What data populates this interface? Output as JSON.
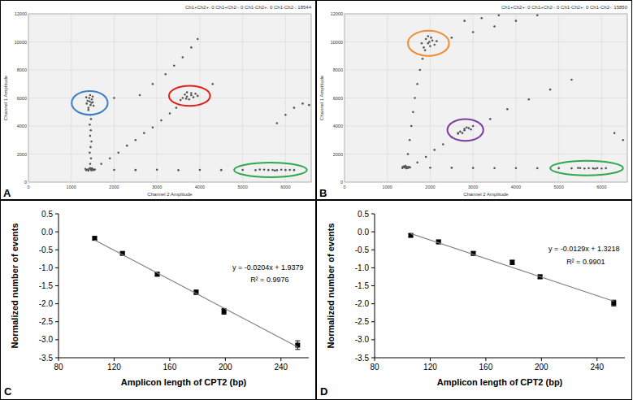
{
  "chart_data": [
    {
      "type": "scatter",
      "panel_label": "A",
      "title": "Ch1+Ch2+: 0  Ch1+Ch2-: 0  Ch1-Ch2+: 0  Ch1-Ch2-: 18544",
      "xlabel": "Channel 2 Amplitude",
      "ylabel": "Channel 1 Amplitude",
      "xlim": [
        0,
        6600
      ],
      "ylim": [
        0,
        12000
      ],
      "xticks": [
        0,
        1000,
        2000,
        3000,
        4000,
        5000,
        6000
      ],
      "yticks": [
        0,
        2000,
        4000,
        6000,
        8000,
        10000,
        12000
      ],
      "grid": true,
      "series": [
        {
          "color": "#555555",
          "marker": "circle",
          "x": [
            1380,
            1420,
            1460,
            1500,
            1350,
            1440,
            1520,
            1400,
            1480,
            1550,
            1330,
            1470,
            1440,
            1460,
            1430,
            1450,
            1470,
            1440,
            1455,
            1430,
            1460,
            1445,
            1400,
            1450,
            1500,
            1380,
            1420,
            1480,
            1360,
            1520,
            1440,
            1400,
            1470,
            1350,
            1500,
            1430,
            1700,
            1900,
            2100,
            2300,
            2500,
            2700,
            2900,
            3100,
            3300,
            3450,
            3600,
            3700,
            3800,
            3750,
            3900,
            3650,
            3850,
            3700,
            3950,
            3550,
            3800,
            3680,
            2600,
            2900,
            3200,
            3400,
            3600,
            3800,
            3950,
            2000,
            4300,
            2000,
            2500,
            3000,
            3500,
            4000,
            4500,
            5000,
            5300,
            5500,
            5600,
            5700,
            5800,
            5900,
            6000,
            6100,
            5400,
            5750,
            6200,
            6000,
            6200,
            6400,
            6550,
            5800
          ],
          "values": [
            900,
            950,
            880,
            920,
            850,
            1000,
            860,
            820,
            980,
            900,
            940,
            840,
            1300,
            1700,
            2100,
            2500,
            2900,
            3300,
            3700,
            4100,
            4500,
            4800,
            5300,
            5500,
            5700,
            5800,
            6000,
            5900,
            5600,
            5450,
            6200,
            5150,
            5650,
            6050,
            6100,
            5750,
            1300,
            1700,
            2100,
            2600,
            3000,
            3500,
            3900,
            4400,
            4900,
            5300,
            6000,
            6100,
            6200,
            5900,
            6300,
            6250,
            6050,
            6400,
            6150,
            5850,
            6350,
            5950,
            6200,
            7000,
            7700,
            8300,
            8900,
            9600,
            10200,
            6000,
            7000,
            870,
            860,
            880,
            850,
            870,
            860,
            870,
            850,
            880,
            860,
            870,
            850,
            880,
            860,
            870,
            900,
            830,
            860,
            4800,
            5300,
            5600,
            5500,
            4200
          ]
        }
      ],
      "clusters": [
        {
          "x": 1430,
          "y": 5650,
          "rx": 420,
          "ry": 850,
          "color": "#3d7fc6"
        },
        {
          "x": 3760,
          "y": 6150,
          "rx": 480,
          "ry": 720,
          "color": "#e0201b"
        },
        {
          "x": 5650,
          "y": 870,
          "rx": 850,
          "ry": 520,
          "color": "#2fa84f"
        }
      ]
    },
    {
      "type": "scatter",
      "panel_label": "B",
      "title": "Ch1+Ch2+: 0  Ch1+Ch2-: 0  Ch1-Ch2+: 0  Ch1-Ch2-: 15850",
      "xlabel": "Channel 2 Amplitude",
      "ylabel": "Channel 1 Amplitude",
      "xlim": [
        0,
        6600
      ],
      "ylim": [
        0,
        12000
      ],
      "xticks": [
        0,
        1000,
        2000,
        3000,
        4000,
        5000,
        6000
      ],
      "yticks": [
        0,
        2000,
        4000,
        6000,
        8000,
        10000,
        12000
      ],
      "grid": true,
      "series": [
        {
          "color": "#555555",
          "marker": "circle",
          "x": [
            1400,
            1450,
            1350,
            1500,
            1420,
            1480,
            1380,
            1530,
            1440,
            1360,
            1480,
            1520,
            1560,
            1600,
            1640,
            1700,
            1760,
            1820,
            1850,
            1950,
            2050,
            1900,
            2000,
            1800,
            2100,
            1950,
            1880,
            2020,
            1980,
            2150,
            2500,
            3000,
            3500,
            4000,
            4500,
            2800,
            3200,
            3600,
            1700,
            1900,
            2100,
            2300,
            2500,
            2650,
            2700,
            2800,
            2900,
            2750,
            2850,
            2950,
            2650,
            2800,
            3000,
            3400,
            3800,
            4300,
            4800,
            5300,
            2000,
            2500,
            3000,
            3500,
            4000,
            4500,
            5000,
            5300,
            5500,
            5600,
            5700,
            5800,
            5900,
            6000,
            6100,
            5450,
            5850,
            6300,
            6500
          ],
          "values": [
            1050,
            1100,
            1000,
            1080,
            1150,
            1000,
            1120,
            1050,
            980,
            1080,
            2000,
            3000,
            4000,
            5000,
            6000,
            7000,
            8000,
            8800,
            9600,
            9900,
            10100,
            10200,
            9700,
            9900,
            9800,
            10400,
            9400,
            10300,
            10000,
            10050,
            10300,
            10700,
            11100,
            11500,
            11900,
            11500,
            11700,
            11900,
            1400,
            1800,
            2300,
            2700,
            3200,
            3500,
            3600,
            3700,
            3850,
            3500,
            3900,
            3750,
            3450,
            3800,
            4000,
            4500,
            5200,
            5900,
            6600,
            7300,
            1030,
            1020,
            1010,
            1000,
            1000,
            990,
            990,
            980,
            1000,
            970,
            990,
            980,
            1000,
            970,
            990,
            1010,
            960,
            3500,
            3000
          ]
        }
      ],
      "clusters": [
        {
          "x": 1960,
          "y": 9900,
          "rx": 480,
          "ry": 900,
          "color": "#f28a2e"
        },
        {
          "x": 2820,
          "y": 3720,
          "rx": 420,
          "ry": 780,
          "color": "#7a3ea1"
        },
        {
          "x": 5650,
          "y": 1000,
          "rx": 850,
          "ry": 520,
          "color": "#2fa84f"
        }
      ]
    },
    {
      "type": "line",
      "panel_label": "C",
      "xlabel": "Amplicon length of CPT2 (bp)",
      "ylabel": "Normalized number of events",
      "xlim": [
        80,
        260
      ],
      "ylim": [
        -3.5,
        0.5
      ],
      "xticks": [
        80,
        120,
        160,
        200,
        240
      ],
      "yticks": [
        0.5,
        {
          "value": 0,
          "label": "0.0"
        },
        -0.5,
        {
          "value": -1,
          "label": "-1.0"
        },
        -1.5,
        {
          "value": -2,
          "label": "-2.0"
        },
        -2.5,
        {
          "value": -3,
          "label": "-3.0"
        },
        -3.5
      ],
      "grid": false,
      "series": [
        {
          "type": "scatter",
          "marker": "square",
          "color": "#000000",
          "x": [
            106,
            126,
            151,
            179,
            199,
            252
          ],
          "values": [
            -0.18,
            -0.6,
            -1.18,
            -1.68,
            -2.21,
            -3.15
          ],
          "errors": [
            0.04,
            0.04,
            0.05,
            0.06,
            0.08,
            0.12
          ]
        },
        {
          "type": "line",
          "line_style": "solid",
          "color": "#7f7f7f",
          "x": [
            106,
            252
          ],
          "values": [
            -0.23,
            -3.2
          ]
        }
      ],
      "annotations": [
        {
          "text": "y = -0.0204x + 1.9379",
          "x": 205,
          "y": -1.05
        },
        {
          "text": "R² = 0.9976",
          "x": 218,
          "y": -1.4
        }
      ]
    },
    {
      "type": "line",
      "panel_label": "D",
      "xlabel": "Amplicon length of CPT2 (bp)",
      "ylabel": "Normalized number of events",
      "xlim": [
        80,
        260
      ],
      "ylim": [
        -3.5,
        0.5
      ],
      "xticks": [
        80,
        120,
        160,
        200,
        240
      ],
      "yticks": [
        0.5,
        {
          "value": 0,
          "label": "0.0"
        },
        -0.5,
        {
          "value": -1,
          "label": "-1.0"
        },
        -1.5,
        {
          "value": -2,
          "label": "-2.0"
        },
        -2.5,
        {
          "value": -3,
          "label": "-3.0"
        },
        -3.5
      ],
      "grid": false,
      "series": [
        {
          "type": "scatter",
          "marker": "square",
          "color": "#000000",
          "x": [
            106,
            126,
            151,
            179,
            199,
            252
          ],
          "values": [
            -0.1,
            -0.28,
            -0.6,
            -0.85,
            -1.25,
            -1.98
          ],
          "errors": [
            0.04,
            0.05,
            0.05,
            0.06,
            0.05,
            0.08
          ]
        },
        {
          "type": "line",
          "line_style": "solid",
          "color": "#7f7f7f",
          "x": [
            106,
            252
          ],
          "values": [
            -0.05,
            -1.93
          ]
        }
      ],
      "annotations": [
        {
          "text": "y = -0.0129x + 1.3218",
          "x": 205,
          "y": -0.55
        },
        {
          "text": "R² = 0.9901",
          "x": 218,
          "y": -0.9
        }
      ]
    }
  ]
}
